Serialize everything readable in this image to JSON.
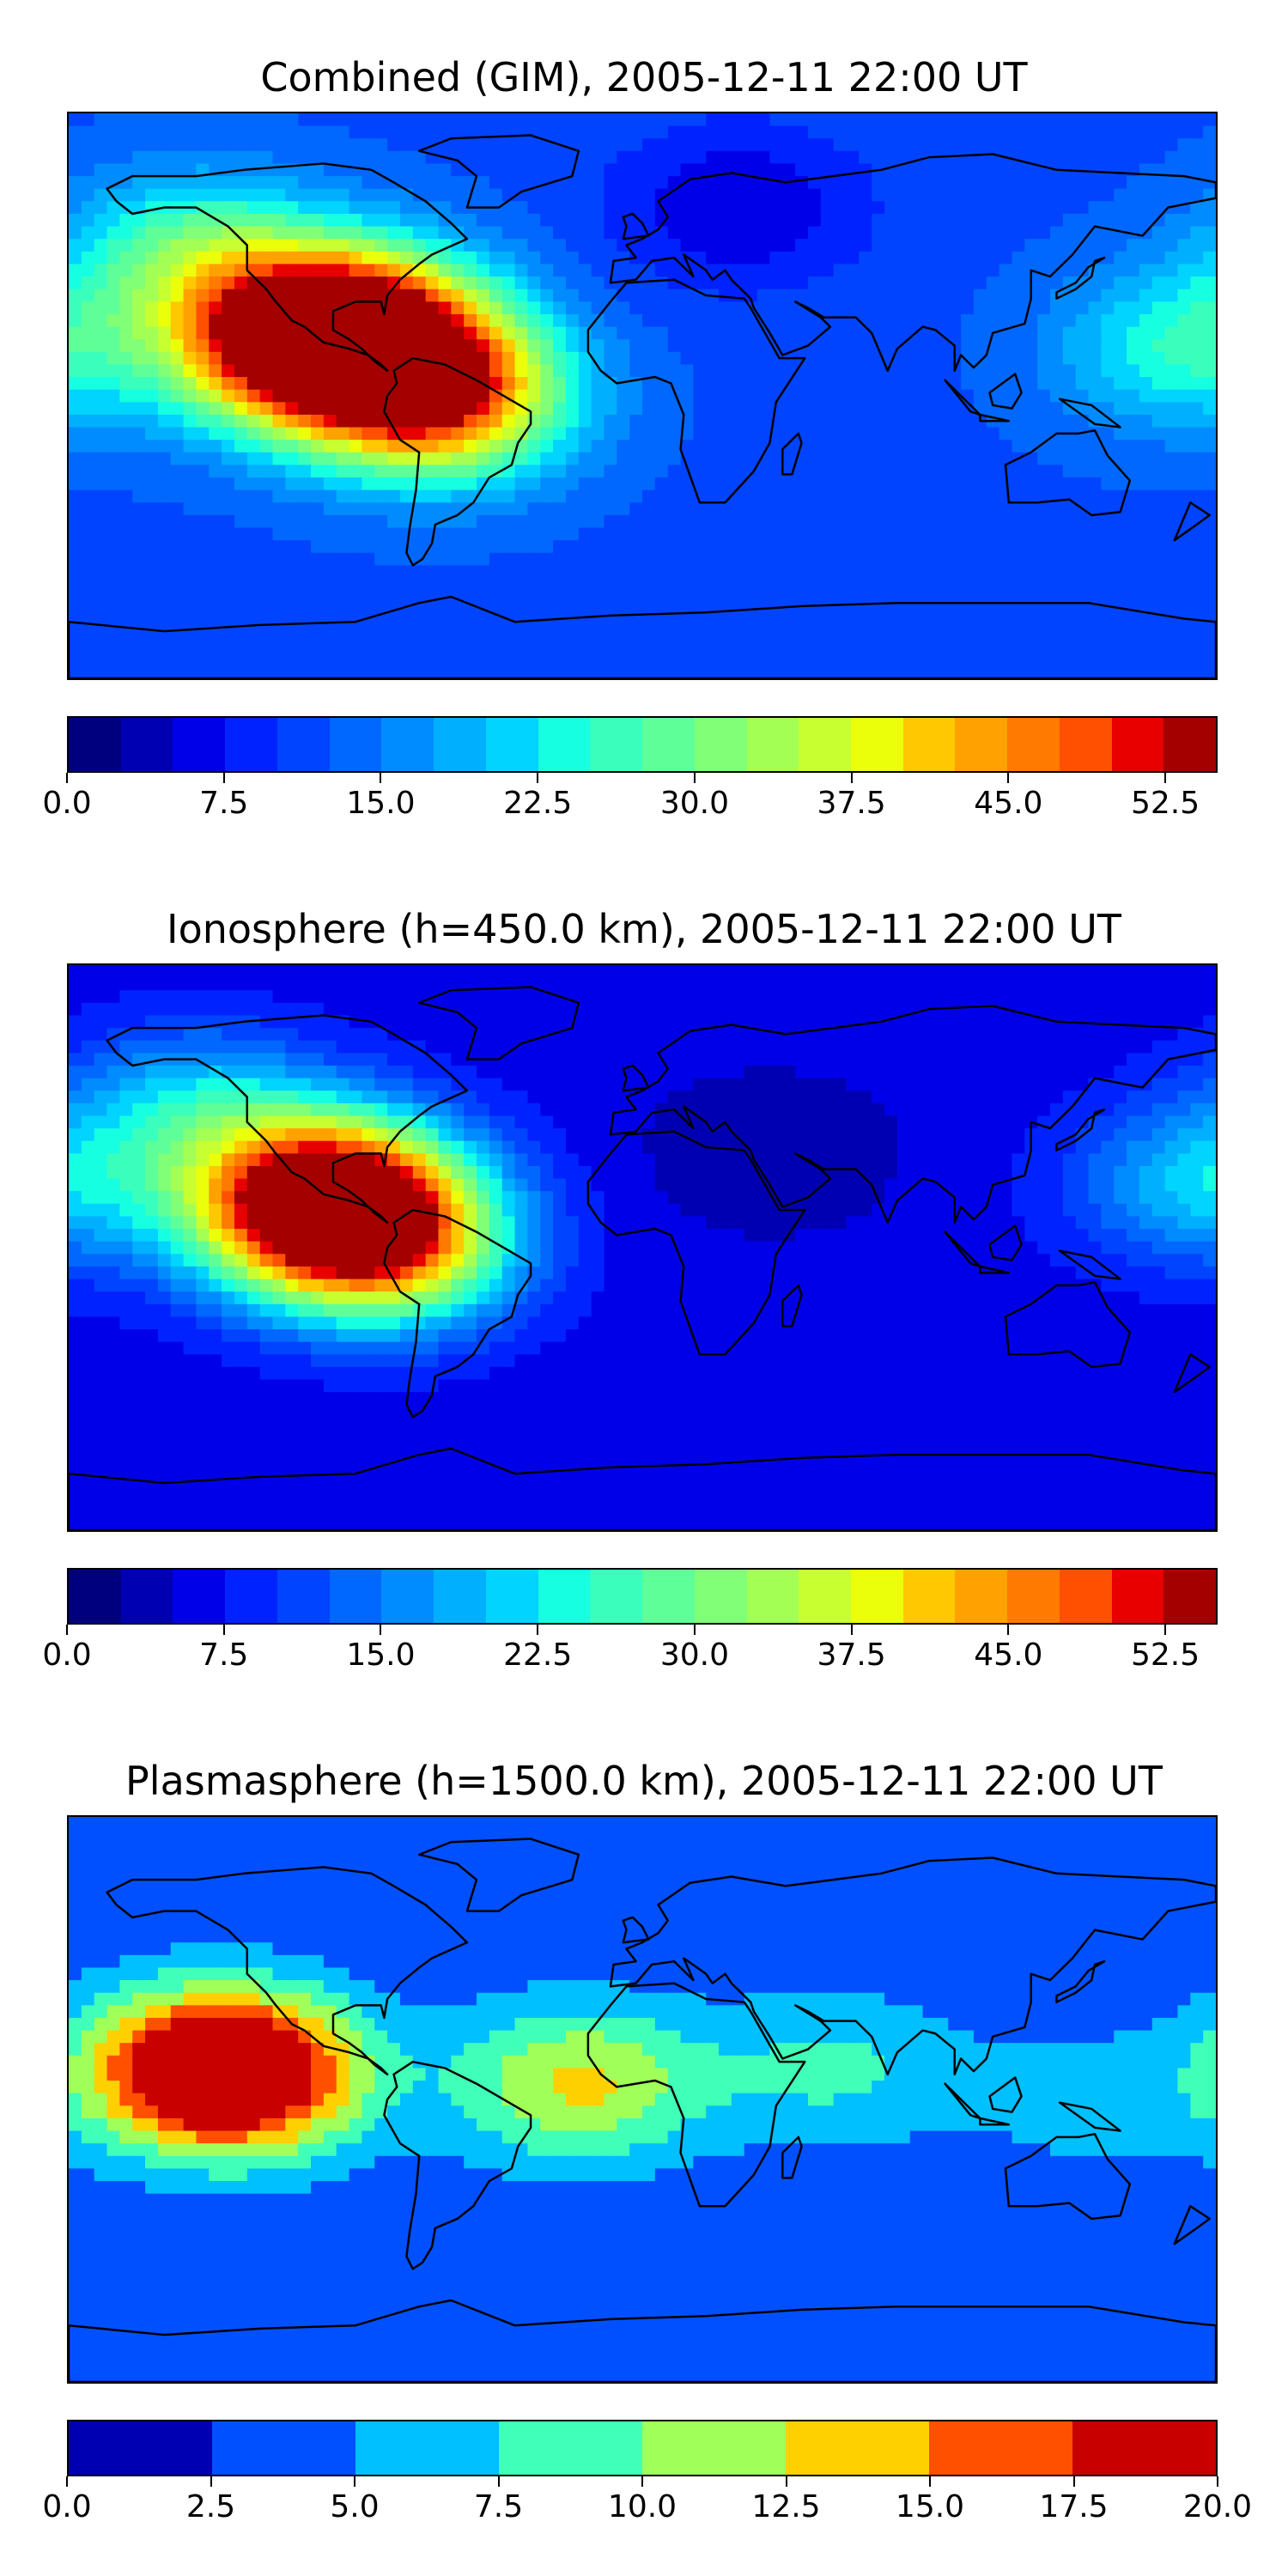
{
  "panels": [
    {
      "title": "Combined (GIM), 2005-12-11 22:00 UT",
      "colorbar": {
        "min": 0,
        "max": 55,
        "levels": 22,
        "ticks": [
          "0.0",
          "7.5",
          "15.0",
          "22.5",
          "30.0",
          "37.5",
          "45.0",
          "52.5"
        ],
        "tick_values": [
          0,
          7.5,
          15,
          22.5,
          30,
          37.5,
          45,
          52.5
        ],
        "colors": [
          "#00007f",
          "#0000b2",
          "#0000e8",
          "#0022ff",
          "#0044ff",
          "#0068ff",
          "#008cff",
          "#00b0ff",
          "#00d4ff",
          "#16ffe1",
          "#3affbc",
          "#5eff98",
          "#80ff77",
          "#a3ff54",
          "#c7ff30",
          "#ebff0b",
          "#ffc800",
          "#ffa100",
          "#ff7a00",
          "#ff4f00",
          "#e80000",
          "#a40000"
        ]
      },
      "field": {
        "background_value": 12,
        "blobs": [
          {
            "lon": -110,
            "lat": 15,
            "value": 44
          },
          {
            "lon": -90,
            "lat": 22,
            "value": 50
          },
          {
            "lon": -65,
            "lat": 0,
            "value": 50
          },
          {
            "lon": -140,
            "lat": 45,
            "value": 28
          },
          {
            "lon": 170,
            "lat": 15,
            "value": 25
          },
          {
            "lon": 30,
            "lat": 60,
            "value": 5
          }
        ]
      }
    },
    {
      "title": "Ionosphere  (h=450.0 km), 2005-12-11 22:00 UT",
      "colorbar": {
        "min": 0,
        "max": 55,
        "levels": 22,
        "ticks": [
          "0.0",
          "7.5",
          "15.0",
          "22.5",
          "30.0",
          "37.5",
          "45.0",
          "52.5"
        ],
        "tick_values": [
          0,
          7.5,
          15,
          22.5,
          30,
          37.5,
          45,
          52.5
        ],
        "colors": [
          "#00007f",
          "#0000b2",
          "#0000e8",
          "#0022ff",
          "#0044ff",
          "#0068ff",
          "#008cff",
          "#00b0ff",
          "#00d4ff",
          "#16ffe1",
          "#3affbc",
          "#5eff98",
          "#80ff77",
          "#a3ff54",
          "#c7ff30",
          "#ebff0b",
          "#ffc800",
          "#ffa100",
          "#ff7a00",
          "#ff4f00",
          "#e80000",
          "#a40000"
        ]
      },
      "field": {
        "background_value": 6,
        "blobs": [
          {
            "lon": -110,
            "lat": 10,
            "value": 30
          },
          {
            "lon": -95,
            "lat": 20,
            "value": 38
          },
          {
            "lon": -80,
            "lat": 0,
            "value": 38
          },
          {
            "lon": -140,
            "lat": 45,
            "value": 20
          },
          {
            "lon": 175,
            "lat": 20,
            "value": 20
          },
          {
            "lon": 40,
            "lat": 30,
            "value": 3
          }
        ]
      }
    },
    {
      "title": "Plasmasphere (h=1500.0 km), 2005-12-11 22:00 UT",
      "colorbar": {
        "min": 0,
        "max": 20,
        "levels": 8,
        "ticks": [
          "0.0",
          "2.5",
          "5.0",
          "7.5",
          "10.0",
          "12.5",
          "15.0",
          "17.5",
          "20.0"
        ],
        "tick_values": [
          0,
          2.5,
          5,
          7.5,
          10,
          12.5,
          15,
          17.5,
          20
        ],
        "colors": [
          "#0000b2",
          "#0050ff",
          "#00c0ff",
          "#40ffb8",
          "#a0ff58",
          "#ffd000",
          "#ff5000",
          "#c80000"
        ]
      },
      "field": {
        "background_value": 3,
        "blobs": [
          {
            "lon": -140,
            "lat": 10,
            "value": 14
          },
          {
            "lon": -125,
            "lat": 8,
            "value": 17
          },
          {
            "lon": -20,
            "lat": 5,
            "value": 13
          },
          {
            "lon": 60,
            "lat": 10,
            "value": 8
          },
          {
            "lon": 140,
            "lat": 0,
            "value": 6
          }
        ]
      }
    }
  ]
}
